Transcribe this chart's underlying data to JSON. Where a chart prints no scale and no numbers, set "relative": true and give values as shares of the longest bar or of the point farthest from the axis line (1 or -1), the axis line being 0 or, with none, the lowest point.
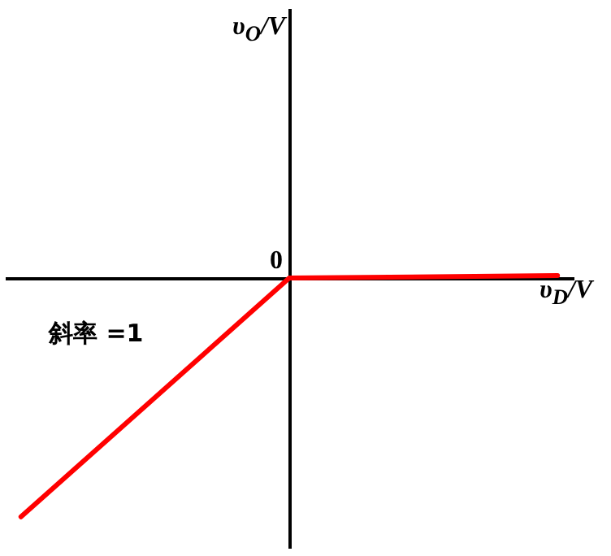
{
  "chart_data": {
    "type": "line",
    "relative": true,
    "xlabel": "υ$_{D}$/V",
    "annotations": [
      "υ$_{O}$/V",
      {
        "text": "0",
        "y": 0
      },
      "斜率 =1"
    ],
    "categories": [
      null,
      null,
      null
    ],
    "series": [
      {
        "color": "#ff0000",
        "values": [
          -1,
          0,
          0.01
        ]
      }
    ],
    "grid": false,
    "marker": "none",
    "line_style": "solid"
  }
}
